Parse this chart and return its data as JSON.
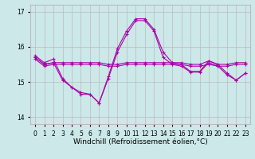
{
  "xlabel": "Windchill (Refroidissement éolien,°C)",
  "ylabel": "",
  "xlim": [
    -0.5,
    23.5
  ],
  "ylim": [
    13.8,
    17.2
  ],
  "yticks": [
    14,
    15,
    16,
    17
  ],
  "xticks": [
    0,
    1,
    2,
    3,
    4,
    5,
    6,
    7,
    8,
    9,
    10,
    11,
    12,
    13,
    14,
    15,
    16,
    17,
    18,
    19,
    20,
    21,
    22,
    23
  ],
  "bg_color": "#cce8e8",
  "grid_color": "#bbbbbb",
  "line_color": "#aa00aa",
  "lines": [
    {
      "x": [
        0,
        1,
        2,
        3,
        4,
        5,
        6,
        7,
        8,
        9,
        10,
        11,
        12,
        13,
        14,
        15,
        16,
        17,
        18,
        19,
        20,
        21,
        22,
        23
      ],
      "y": [
        15.75,
        15.55,
        15.65,
        15.1,
        14.85,
        14.65,
        14.65,
        14.4,
        15.15,
        15.95,
        16.45,
        16.8,
        16.8,
        16.5,
        15.85,
        15.55,
        15.5,
        15.3,
        15.3,
        15.6,
        15.5,
        15.25,
        15.05,
        15.25
      ]
    },
    {
      "x": [
        0,
        1,
        2,
        3,
        4,
        5,
        6,
        7,
        8,
        9,
        10,
        11,
        12,
        13,
        14,
        15,
        16,
        17,
        18,
        19,
        20,
        21,
        22,
        23
      ],
      "y": [
        15.7,
        15.5,
        15.55,
        15.55,
        15.55,
        15.55,
        15.55,
        15.55,
        15.5,
        15.5,
        15.55,
        15.55,
        15.55,
        15.55,
        15.55,
        15.55,
        15.55,
        15.5,
        15.5,
        15.6,
        15.5,
        15.5,
        15.55,
        15.55
      ]
    },
    {
      "x": [
        0,
        1,
        2,
        3,
        4,
        5,
        6,
        7,
        8,
        9,
        10,
        11,
        12,
        13,
        14,
        15,
        16,
        17,
        18,
        19,
        20,
        21,
        22,
        23
      ],
      "y": [
        15.65,
        15.45,
        15.5,
        15.5,
        15.5,
        15.5,
        15.5,
        15.5,
        15.45,
        15.45,
        15.5,
        15.5,
        15.5,
        15.5,
        15.5,
        15.5,
        15.5,
        15.45,
        15.45,
        15.5,
        15.45,
        15.45,
        15.5,
        15.5
      ]
    },
    {
      "x": [
        0,
        1,
        2,
        3,
        4,
        5,
        6,
        7,
        8,
        9,
        10,
        11,
        12,
        13,
        14,
        15,
        16,
        17,
        18,
        19,
        20,
        21,
        22,
        23
      ],
      "y": [
        15.7,
        15.5,
        15.55,
        15.05,
        14.85,
        14.7,
        14.65,
        14.4,
        15.1,
        15.85,
        16.35,
        16.75,
        16.75,
        16.45,
        15.7,
        15.5,
        15.45,
        15.28,
        15.28,
        15.55,
        15.45,
        15.2,
        15.05,
        15.25
      ]
    }
  ],
  "title_fontsize": 7,
  "tick_fontsize": 5.5,
  "xlabel_fontsize": 6.5
}
